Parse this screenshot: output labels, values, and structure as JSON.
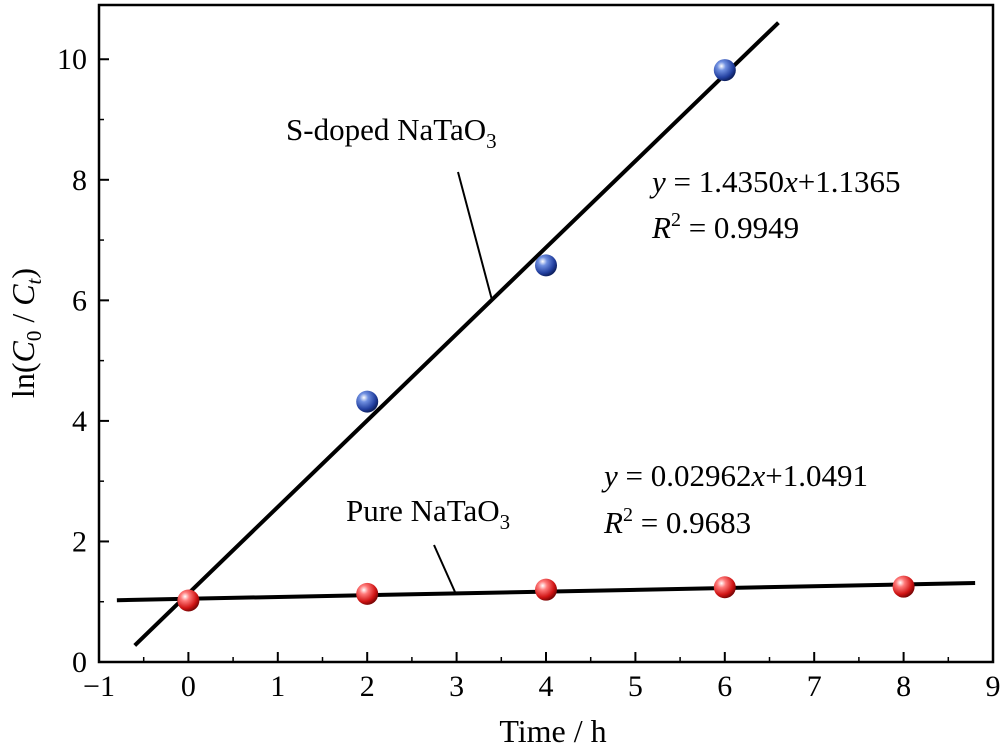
{
  "chart_data": {
    "type": "scatter",
    "xlabel": "Time / h",
    "ylabel": "ln(C0 / Ct)",
    "ylabel_parts": {
      "prefix": "ln(",
      "c": "C",
      "c0_sub": "0",
      "slash": " / ",
      "ct_sub": "t",
      "suffix": ")"
    },
    "xlim": [
      -1,
      9
    ],
    "ylim": [
      0,
      10.9
    ],
    "x_ticks": [
      -1,
      0,
      1,
      2,
      3,
      4,
      5,
      6,
      7,
      8,
      9
    ],
    "y_ticks": [
      0,
      2,
      4,
      6,
      8,
      10
    ],
    "grid": false,
    "legend": "none",
    "series": [
      {
        "name": "S-doped NaTaO3",
        "label_parts": {
          "text": "S-doped NaTaO",
          "sub": "3"
        },
        "color": "#2a4aa8",
        "x": [
          2,
          4,
          6
        ],
        "y": [
          4.32,
          6.58,
          9.82
        ],
        "fit": {
          "slope": 1.435,
          "intercept": 1.1365,
          "x_range": [
            -0.6,
            6.6
          ]
        },
        "equation": {
          "y": "y",
          "eq": " = 1.4350",
          "x": "x",
          "rest": "+1.1365"
        },
        "r2": {
          "r": "R",
          "sup": "2",
          "value": " = 0.9949"
        }
      },
      {
        "name": "Pure NaTaO3",
        "label_parts": {
          "text": "Pure NaTaO",
          "sub": "3"
        },
        "color": "#d01818",
        "x": [
          0,
          2,
          4,
          6,
          8
        ],
        "y": [
          1.02,
          1.13,
          1.2,
          1.24,
          1.25
        ],
        "fit": {
          "slope": 0.02962,
          "intercept": 1.0491,
          "x_range": [
            -0.8,
            8.8
          ]
        },
        "equation": {
          "y": "y",
          "eq": " = 0.02962",
          "x": "x",
          "rest": "+1.0491"
        },
        "r2": {
          "r": "R",
          "sup": "2",
          "value": " = 0.9683"
        }
      }
    ]
  }
}
